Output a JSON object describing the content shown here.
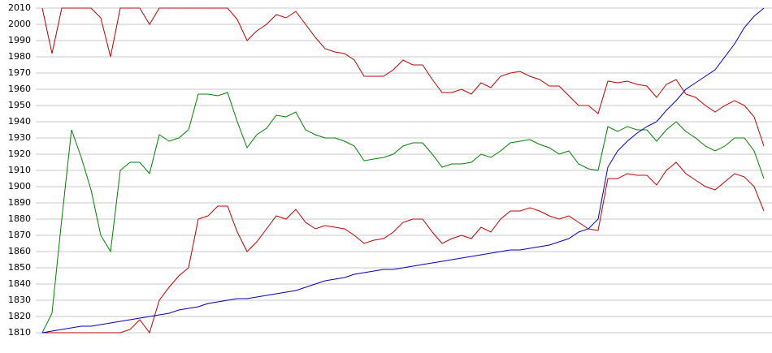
{
  "chart_data": {
    "type": "line",
    "categories": [
      null,
      null,
      null,
      null,
      null,
      null,
      null,
      null,
      null,
      null,
      null,
      null,
      null,
      null,
      null,
      null,
      null,
      null,
      null,
      null,
      null,
      null,
      null,
      null,
      null,
      null,
      null,
      null,
      null,
      null,
      null,
      null,
      null,
      null,
      null,
      null,
      null,
      null,
      null,
      null,
      null,
      null,
      null,
      null,
      null,
      null,
      null,
      null,
      null,
      null,
      null,
      null,
      null,
      null,
      null,
      null,
      null,
      null,
      null,
      null,
      null,
      null,
      null,
      null,
      null,
      null,
      null,
      null,
      null,
      null,
      null,
      null,
      null,
      null,
      null
    ],
    "series": [
      {
        "color": "#c00000",
        "values": [
          2010,
          1982,
          2010,
          2010,
          2010,
          2010,
          2004,
          1980,
          2010,
          2010,
          2010,
          2000,
          2010,
          2010,
          2010,
          2010,
          2010,
          2010,
          2010,
          2010,
          2003,
          1990,
          1996,
          2000,
          2006,
          2004,
          2008,
          2000,
          1992,
          1985,
          1983,
          1982,
          1978,
          1968,
          1968,
          1968,
          1972,
          1978,
          1975,
          1975,
          1966,
          1958,
          1958,
          1960,
          1957,
          1964,
          1961,
          1968,
          1970,
          1971,
          1968,
          1966,
          1962,
          1962,
          1956,
          1950,
          1950,
          1945,
          1965,
          1964,
          1965,
          1963,
          1962,
          1955,
          1963,
          1966,
          1957,
          1955,
          1950,
          1946,
          1950,
          1953,
          1950,
          1943,
          1925
        ]
      },
      {
        "color": "#008000",
        "values": [
          1810,
          1822,
          1880,
          1935,
          1918,
          1898,
          1870,
          1860,
          1910,
          1915,
          1915,
          1908,
          1932,
          1928,
          1930,
          1935,
          1957,
          1957,
          1956,
          1958,
          1940,
          1924,
          1932,
          1936,
          1944,
          1943,
          1946,
          1935,
          1932,
          1930,
          1930,
          1928,
          1925,
          1916,
          1917,
          1918,
          1920,
          1925,
          1927,
          1927,
          1920,
          1912,
          1914,
          1914,
          1915,
          1920,
          1918,
          1922,
          1927,
          1928,
          1929,
          1926,
          1924,
          1920,
          1922,
          1914,
          1911,
          1910,
          1937,
          1934,
          1937,
          1935,
          1935,
          1928,
          1935,
          1940,
          1934,
          1930,
          1925,
          1922,
          1925,
          1930,
          1930,
          1922,
          1905
        ]
      },
      {
        "color": "#c00000",
        "values": [
          1810,
          1810,
          1810,
          1810,
          1810,
          1810,
          1810,
          1810,
          1810,
          1812,
          1818,
          1810,
          1830,
          1838,
          1845,
          1850,
          1880,
          1882,
          1888,
          1888,
          1872,
          1860,
          1866,
          1874,
          1882,
          1880,
          1886,
          1878,
          1874,
          1876,
          1875,
          1874,
          1870,
          1865,
          1867,
          1868,
          1872,
          1878,
          1880,
          1880,
          1872,
          1865,
          1868,
          1870,
          1868,
          1875,
          1872,
          1880,
          1885,
          1885,
          1887,
          1885,
          1882,
          1880,
          1882,
          1878,
          1874,
          1873,
          1905,
          1905,
          1908,
          1907,
          1907,
          1901,
          1910,
          1915,
          1908,
          1904,
          1900,
          1898,
          1903,
          1908,
          1906,
          1900,
          1885
        ]
      },
      {
        "color": "#0000c0",
        "values": [
          1810,
          1811,
          1812,
          1813,
          1814,
          1814,
          1815,
          1816,
          1817,
          1818,
          1819,
          1820,
          1821,
          1822,
          1824,
          1825,
          1826,
          1828,
          1829,
          1830,
          1831,
          1831,
          1832,
          1833,
          1834,
          1835,
          1836,
          1838,
          1840,
          1842,
          1843,
          1844,
          1846,
          1847,
          1848,
          1849,
          1849,
          1850,
          1851,
          1852,
          1853,
          1854,
          1855,
          1856,
          1857,
          1858,
          1859,
          1860,
          1861,
          1861,
          1862,
          1863,
          1864,
          1866,
          1868,
          1872,
          1874,
          1880,
          1912,
          1922,
          1928,
          1933,
          1937,
          1940,
          1947,
          1953,
          1960,
          1964,
          1968,
          1972,
          1980,
          1988,
          1998,
          2005,
          2010
        ]
      }
    ],
    "ylim": [
      1810,
      2010
    ],
    "yticks": [
      1810,
      1820,
      1830,
      1840,
      1850,
      1860,
      1870,
      1880,
      1890,
      1900,
      1910,
      1920,
      1930,
      1940,
      1950,
      1960,
      1970,
      1980,
      1990,
      2000,
      2010
    ],
    "grid": true
  }
}
